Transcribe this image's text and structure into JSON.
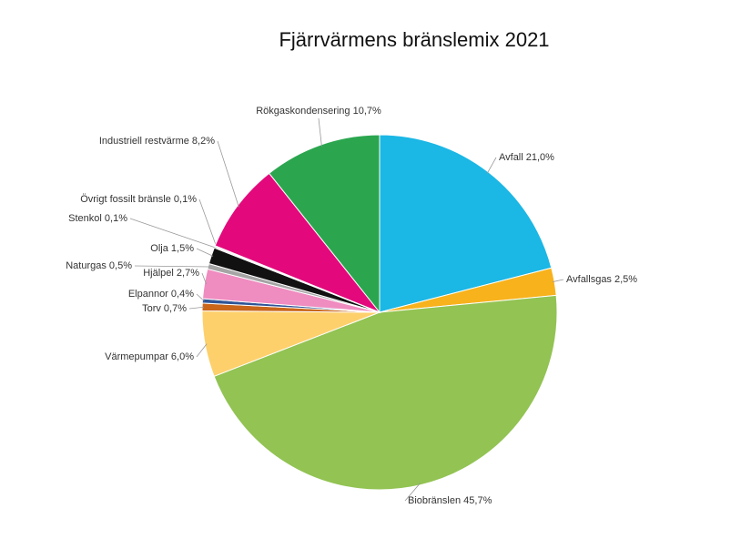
{
  "chart_data": {
    "type": "pie",
    "title": "Fjärrvärmens bränslemix 2021",
    "categories": [
      "Avfall",
      "Avfallsgas",
      "Biobränslen",
      "Värmepumpar",
      "Torv",
      "Elpannor",
      "Hjälpel",
      "Naturgas",
      "Olja",
      "Stenkol",
      "Övrigt fossilt bränsle",
      "Industriell restvärme",
      "Rökgaskondensering"
    ],
    "values": [
      21.0,
      2.5,
      45.7,
      6.0,
      0.7,
      0.4,
      2.7,
      0.5,
      1.5,
      0.1,
      0.1,
      8.2,
      10.7
    ],
    "value_labels": [
      "21,0%",
      "2,5%",
      "45,7%",
      "6,0%",
      "0,7%",
      "0,4%",
      "2,7%",
      "0,5%",
      "1,5%",
      "0,1%",
      "0,1%",
      "8,2%",
      "10,7%"
    ],
    "colors": [
      "#1bb7e5",
      "#f7b21c",
      "#92c353",
      "#fdd06b",
      "#c9661a",
      "#2f5597",
      "#ef8cc0",
      "#a5a5a5",
      "#111111",
      "#7f7f7f",
      "#bfbfbf",
      "#e3097c",
      "#2ba64f"
    ]
  }
}
